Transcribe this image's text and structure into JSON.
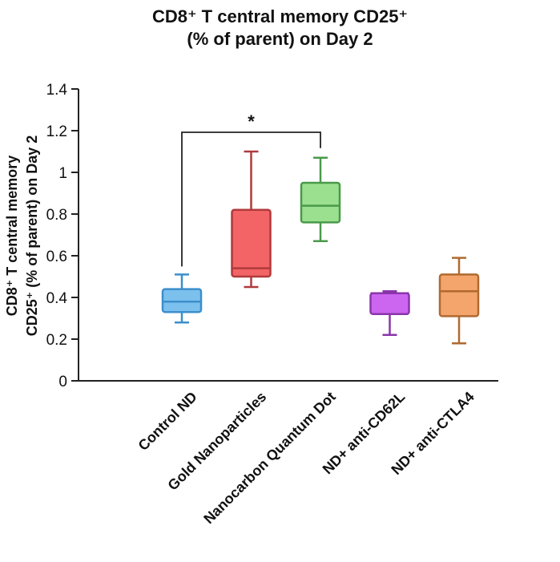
{
  "chart_data": {
    "type": "box",
    "title_line1": "CD8⁺ T central memory CD25⁺",
    "title_line2": "(% of parent) on Day 2",
    "ylabel_line1": "CD8⁺ T central memory",
    "ylabel_line2": "CD25⁺ (% of parent) on Day 2",
    "xlabel": "",
    "ylim": [
      0,
      1.4
    ],
    "yticks": [
      0,
      0.2,
      0.4,
      0.6,
      0.8,
      1,
      1.2,
      1.4
    ],
    "ytick_labels": [
      "0",
      "0.2",
      "0.4",
      "0.6",
      "0.8",
      "1",
      "1.2",
      "1.4"
    ],
    "grid": false,
    "categories": [
      "Control ND",
      "Gold Nanoparticles",
      "Nanocarbon Quantum Dot",
      "ND+ anti-CD62L",
      "ND+ anti-CTLA4"
    ],
    "boxes": [
      {
        "name": "Control ND",
        "min": 0.28,
        "q1": 0.33,
        "median": 0.38,
        "q3": 0.44,
        "max": 0.51,
        "fill": "#7cc0ee",
        "stroke": "#3b8fcc"
      },
      {
        "name": "Gold Nanoparticles",
        "min": 0.45,
        "q1": 0.5,
        "median": 0.54,
        "q3": 0.82,
        "max": 1.1,
        "fill": "#f26466",
        "stroke": "#b03a3c"
      },
      {
        "name": "Nanocarbon Quantum Dot",
        "min": 0.67,
        "q1": 0.76,
        "median": 0.84,
        "q3": 0.95,
        "max": 1.07,
        "fill": "#9be08f",
        "stroke": "#4a9a4a"
      },
      {
        "name": "ND+ anti-CD62L",
        "min": 0.22,
        "q1": 0.32,
        "median": 0.42,
        "q3": 0.42,
        "max": 0.43,
        "fill": "#cc66f0",
        "stroke": "#8a35aa"
      },
      {
        "name": "ND+ anti-CTLA4",
        "min": 0.18,
        "q1": 0.31,
        "median": 0.43,
        "q3": 0.51,
        "max": 0.59,
        "fill": "#f4a56c",
        "stroke": "#b06a30"
      }
    ],
    "annotations": [
      {
        "type": "significance",
        "from": 0,
        "to": 2,
        "y": 1.2,
        "label": "*"
      }
    ]
  }
}
